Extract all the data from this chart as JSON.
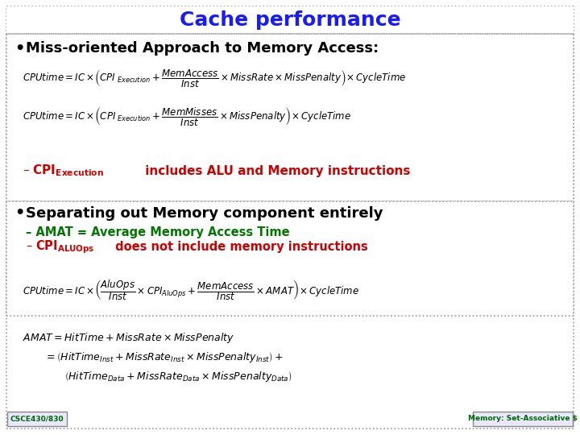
{
  "title": "Cache performance",
  "title_color": "#1a1aff",
  "title_fontsize": 18,
  "bg_color": "#ffffff",
  "bullet1": "Miss-oriented Approach to Memory Access:",
  "bullet1_fontsize": 13,
  "note1_color": "#cc0000",
  "bullet2": "Separating out Memory component entirely",
  "bullet2_fontsize": 13,
  "sub1": "– AMAT = Average Memory Access Time",
  "sub1_color": "#007700",
  "sub2_color": "#cc0000",
  "footer_left": "CSCE430/830",
  "footer_right": "Memory: Set-Associative $",
  "footer_color": "#006600"
}
